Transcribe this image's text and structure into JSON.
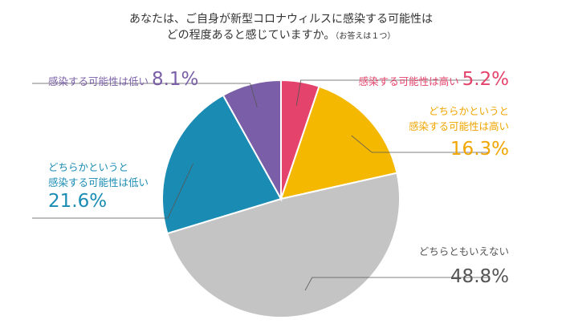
{
  "chart_data": {
    "type": "pie",
    "title_line1": "あなたは、ご自身が新型コロナウィルスに感染する可能性は",
    "title_line2": "どの程度あると感じていますか。",
    "title_note": "（お答えは１つ）",
    "slices": [
      {
        "label": "感染する可能性は高い",
        "label_lines": [
          "感染する可能性は高い"
        ],
        "value": 5.2,
        "value_text": "5.2%",
        "color": "#e4436b"
      },
      {
        "label": "どちらかというと感染する可能性は高い",
        "label_lines": [
          "どちらかというと",
          "感染する可能性は高い"
        ],
        "value": 16.3,
        "value_text": "16.3%",
        "color": "#f5b800"
      },
      {
        "label": "どちらともいえない",
        "label_lines": [
          "どちらともいえない"
        ],
        "value": 48.8,
        "value_text": "48.8%",
        "color": "#c4c4c4"
      },
      {
        "label": "どちらかというと感染する可能性は低い",
        "label_lines": [
          "どちらかというと",
          "感染する可能性は低い"
        ],
        "value": 21.6,
        "value_text": "21.6%",
        "color": "#1a8cb4"
      },
      {
        "label": "感染する可能性は低い",
        "label_lines": [
          "感染する可能性は低い"
        ],
        "value": 8.1,
        "value_text": "8.1%",
        "color": "#7a5fa8"
      }
    ],
    "text_colors": [
      "#e4436b",
      "#f0a500",
      "#555555",
      "#1a8cb4",
      "#7a5fa8"
    ]
  }
}
